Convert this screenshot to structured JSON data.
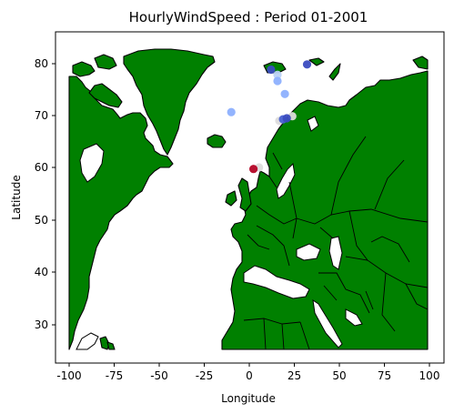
{
  "chart_data": {
    "type": "scatter",
    "title": "HourlyWindSpeed : Period 01-2001",
    "xlabel": "Longitude",
    "ylabel": "Latitude",
    "xlim": [
      -105,
      105
    ],
    "ylim": [
      22.5,
      86.5
    ],
    "xticks": [
      -100,
      -75,
      -50,
      -25,
      0,
      25,
      50,
      75,
      100
    ],
    "yticks": [
      30,
      40,
      50,
      60,
      70,
      80
    ],
    "grid": false,
    "basemap": {
      "land_color": "#008000",
      "border_color": "#000000",
      "ocean_color": "#ffffff"
    },
    "points": [
      {
        "lon": 31,
        "lat": 80.2,
        "color": "#3b4cc0"
      },
      {
        "lon": 11.5,
        "lat": 79.2,
        "color": "#3b4cc0"
      },
      {
        "lon": 15,
        "lat": 78.2,
        "color": "#bcd2f7"
      },
      {
        "lon": 15,
        "lat": 77,
        "color": "#8db0fe"
      },
      {
        "lon": 19,
        "lat": 74.5,
        "color": "#8db0fe"
      },
      {
        "lon": -10,
        "lat": 71,
        "color": "#8db0fe"
      },
      {
        "lon": 23,
        "lat": 70.2,
        "color": "#dddcdc"
      },
      {
        "lon": 16,
        "lat": 69.3,
        "color": "#dddcdc"
      },
      {
        "lon": 18,
        "lat": 69.6,
        "color": "#4961d2"
      },
      {
        "lon": 20,
        "lat": 69.8,
        "color": "#3b4cc0"
      },
      {
        "lon": 5,
        "lat": 60.3,
        "color": "#dddcdc"
      },
      {
        "lon": 2,
        "lat": 60,
        "color": "#b40426"
      }
    ]
  }
}
